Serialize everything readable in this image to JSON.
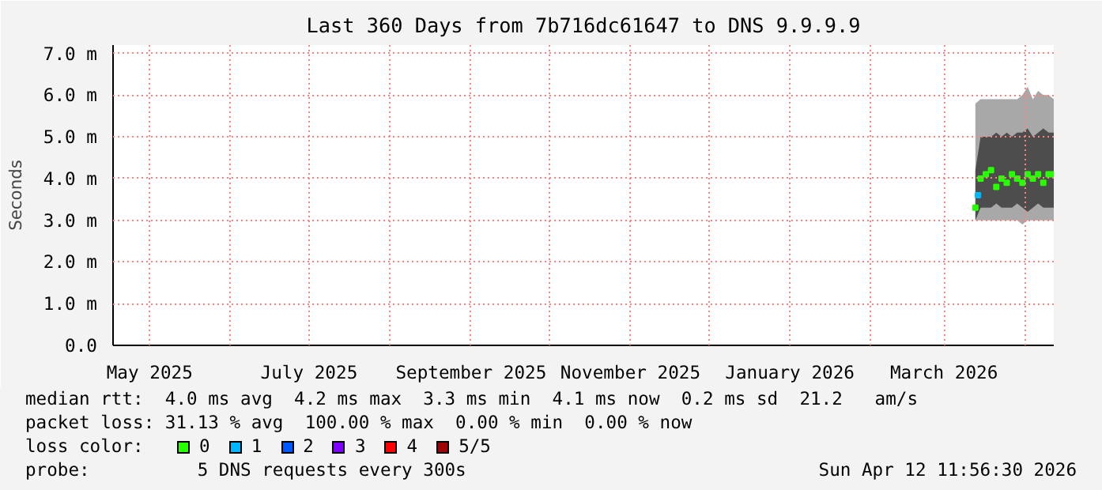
{
  "chart_data": {
    "type": "line",
    "title": "Last 360 Days from 7b716dc61647 to DNS 9.9.9.9",
    "ylabel": "Seconds",
    "xlim": [
      "2025-04-17",
      "2026-04-12"
    ],
    "xticks": [
      {
        "value": "2025-05-01",
        "label": "May 2025"
      },
      {
        "value": "2025-06-01",
        "label": null
      },
      {
        "value": "2025-07-01",
        "label": "July 2025"
      },
      {
        "value": "2025-08-01",
        "label": null
      },
      {
        "value": "2025-09-01",
        "label": "September 2025"
      },
      {
        "value": "2025-10-01",
        "label": null
      },
      {
        "value": "2025-11-01",
        "label": "November 2025"
      },
      {
        "value": "2025-12-01",
        "label": null
      },
      {
        "value": "2026-01-01",
        "label": "January 2026"
      },
      {
        "value": "2026-02-01",
        "label": null
      },
      {
        "value": "2026-03-01",
        "label": "March 2026"
      },
      {
        "value": "2026-04-01",
        "label": null
      }
    ],
    "ylim": [
      0,
      7.2
    ],
    "yticks": [
      {
        "value": 0,
        "label": "0.0"
      },
      {
        "value": 1,
        "label": "1.0 m"
      },
      {
        "value": 2,
        "label": "2.0 m"
      },
      {
        "value": 3,
        "label": "3.0 m"
      },
      {
        "value": 4,
        "label": "4.0 m"
      },
      {
        "value": 5,
        "label": "5.0 m"
      },
      {
        "value": 6,
        "label": "6.0 m"
      },
      {
        "value": 7,
        "label": "7.0 m"
      }
    ],
    "grid": true,
    "legend": "bottom",
    "legend_title": "loss color:",
    "x": [
      "2026-03-13",
      "2026-03-15",
      "2026-03-17",
      "2026-03-19",
      "2026-03-21",
      "2026-03-23",
      "2026-03-25",
      "2026-03-27",
      "2026-03-29",
      "2026-03-31",
      "2026-04-02",
      "2026-04-04",
      "2026-04-06",
      "2026-04-08",
      "2026-04-10",
      "2026-04-12"
    ],
    "series": [
      {
        "color": "#a8a8a8",
        "values": [
          null,
          null,
          null,
          null,
          null,
          null,
          null,
          null,
          null,
          null,
          null,
          null,
          null,
          null,
          null,
          null
        ],
        "lower": [
          3.0,
          3.0,
          3.0,
          3.0,
          3.0,
          3.0,
          3.0,
          3.0,
          3.0,
          2.9,
          3.0,
          3.0,
          3.0,
          3.0,
          3.0,
          3.0
        ],
        "upper": [
          5.8,
          5.9,
          5.9,
          5.9,
          5.9,
          5.9,
          5.9,
          5.9,
          5.9,
          6.0,
          6.2,
          5.9,
          6.1,
          6.0,
          6.0,
          5.9
        ]
      },
      {
        "color": "#4d4d4d",
        "values": [
          null,
          null,
          null,
          null,
          null,
          null,
          null,
          null,
          null,
          null,
          null,
          null,
          null,
          null,
          null,
          null
        ],
        "lower": [
          3.0,
          3.3,
          3.3,
          3.3,
          3.4,
          3.3,
          3.3,
          3.3,
          3.4,
          3.3,
          3.2,
          3.3,
          3.4,
          3.3,
          3.3,
          3.3
        ],
        "upper": [
          4.2,
          5.0,
          5.0,
          5.0,
          5.1,
          5.0,
          5.1,
          5.0,
          5.1,
          5.1,
          5.2,
          5.0,
          5.1,
          5.2,
          5.1,
          5.1
        ]
      },
      {
        "name": "0",
        "type": "scatter",
        "marker": "square",
        "color": "#26ff00",
        "values": [
          3.3,
          4.0,
          4.1,
          4.2,
          3.8,
          4.0,
          3.9,
          4.1,
          4.0,
          3.9,
          4.1,
          4.0,
          4.1,
          3.9,
          4.1,
          4.1
        ]
      },
      {
        "name": "1",
        "type": "scatter",
        "marker": "square",
        "color": "#00b8ff",
        "x": [
          "2026-03-14"
        ],
        "values": [
          3.6
        ]
      },
      {
        "name": "2",
        "type": "scatter",
        "marker": "square",
        "color": "#0059ff",
        "values": [
          null,
          null,
          null,
          null,
          null,
          null,
          null,
          null,
          null,
          null,
          null,
          null,
          null,
          null,
          null,
          null
        ]
      },
      {
        "name": "3",
        "type": "scatter",
        "marker": "square",
        "color": "#7e00ff",
        "values": [
          null,
          null,
          null,
          null,
          null,
          null,
          null,
          null,
          null,
          null,
          null,
          null,
          null,
          null,
          null,
          null
        ]
      },
      {
        "name": "4",
        "type": "scatter",
        "marker": "square",
        "color": "#ff0000",
        "values": [
          null,
          null,
          null,
          null,
          null,
          null,
          null,
          null,
          null,
          null,
          null,
          null,
          null,
          null,
          null,
          null
        ]
      },
      {
        "name": "5/5",
        "type": "scatter",
        "marker": "square",
        "color": "#a10000",
        "values": [
          null,
          null,
          null,
          null,
          null,
          null,
          null,
          null,
          null,
          null,
          null,
          null,
          null,
          null,
          null,
          null
        ]
      }
    ],
    "annotations": [
      "median rtt:  4.0 ms avg  4.2 ms max  3.3 ms min  4.1 ms now  0.2 ms sd  21.2   am/s",
      "packet loss: 31.13 % avg  100.00 % max  0.00 % min  0.00 % now",
      "probe:          5 DNS requests every 300s",
      "Sun Apr 12 11:56:30 2026"
    ]
  }
}
